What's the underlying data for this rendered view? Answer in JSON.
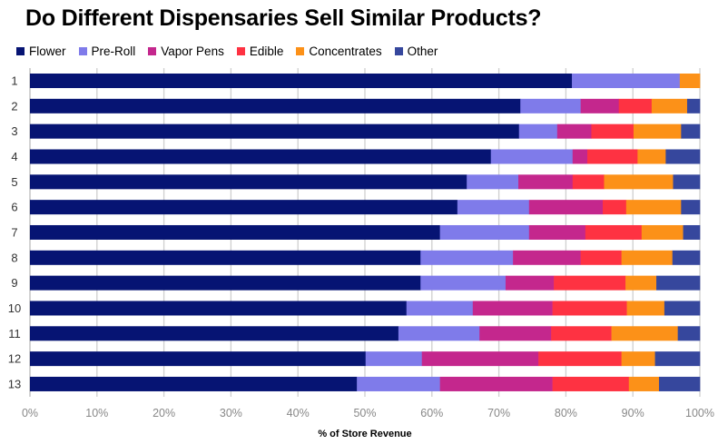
{
  "chart_data": {
    "type": "bar",
    "orientation": "horizontal",
    "stacked": true,
    "title": "Do Different Dispensaries Sell Similar Products?",
    "xlabel": "% of Store Revenue",
    "ylabel": "",
    "xlim": [
      0,
      100
    ],
    "x_ticks": [
      "0%",
      "10%",
      "20%",
      "30%",
      "40%",
      "50%",
      "60%",
      "70%",
      "80%",
      "90%",
      "100%"
    ],
    "grid": "vertical",
    "legend_position": "top-left",
    "categories": [
      "1",
      "2",
      "3",
      "4",
      "5",
      "6",
      "7",
      "8",
      "9",
      "10",
      "11",
      "12",
      "13"
    ],
    "series": [
      {
        "name": "Flower",
        "color": "#061473",
        "values": [
          80.9,
          73.2,
          73.0,
          68.8,
          65.2,
          63.8,
          61.2,
          58.3,
          58.3,
          56.2,
          55.0,
          50.1,
          48.8
        ]
      },
      {
        "name": "Pre-Roll",
        "color": "#7f7bea",
        "values": [
          16.1,
          9.0,
          5.7,
          12.2,
          7.7,
          10.7,
          13.3,
          13.8,
          12.7,
          9.9,
          12.1,
          8.4,
          12.4
        ]
      },
      {
        "name": "Vapor Pens",
        "color": "#c4278d",
        "values": [
          0,
          5.7,
          5.1,
          2.2,
          8.1,
          11.0,
          8.4,
          10.1,
          7.2,
          11.9,
          10.7,
          17.4,
          16.8
        ]
      },
      {
        "name": "Edible",
        "color": "#fe3242",
        "values": [
          0,
          4.9,
          6.3,
          7.5,
          4.7,
          3.5,
          8.4,
          6.1,
          10.7,
          11.1,
          9.0,
          12.4,
          11.4
        ]
      },
      {
        "name": "Concentrates",
        "color": "#fc9118",
        "values": [
          3.0,
          5.3,
          7.1,
          4.2,
          10.3,
          8.2,
          6.2,
          7.6,
          4.6,
          5.6,
          9.9,
          5.0,
          4.5
        ]
      },
      {
        "name": "Other",
        "color": "#36479d",
        "values": [
          0,
          1.9,
          2.8,
          5.1,
          4.0,
          2.8,
          2.5,
          4.1,
          6.5,
          5.3,
          3.3,
          6.7,
          6.1
        ]
      }
    ]
  }
}
